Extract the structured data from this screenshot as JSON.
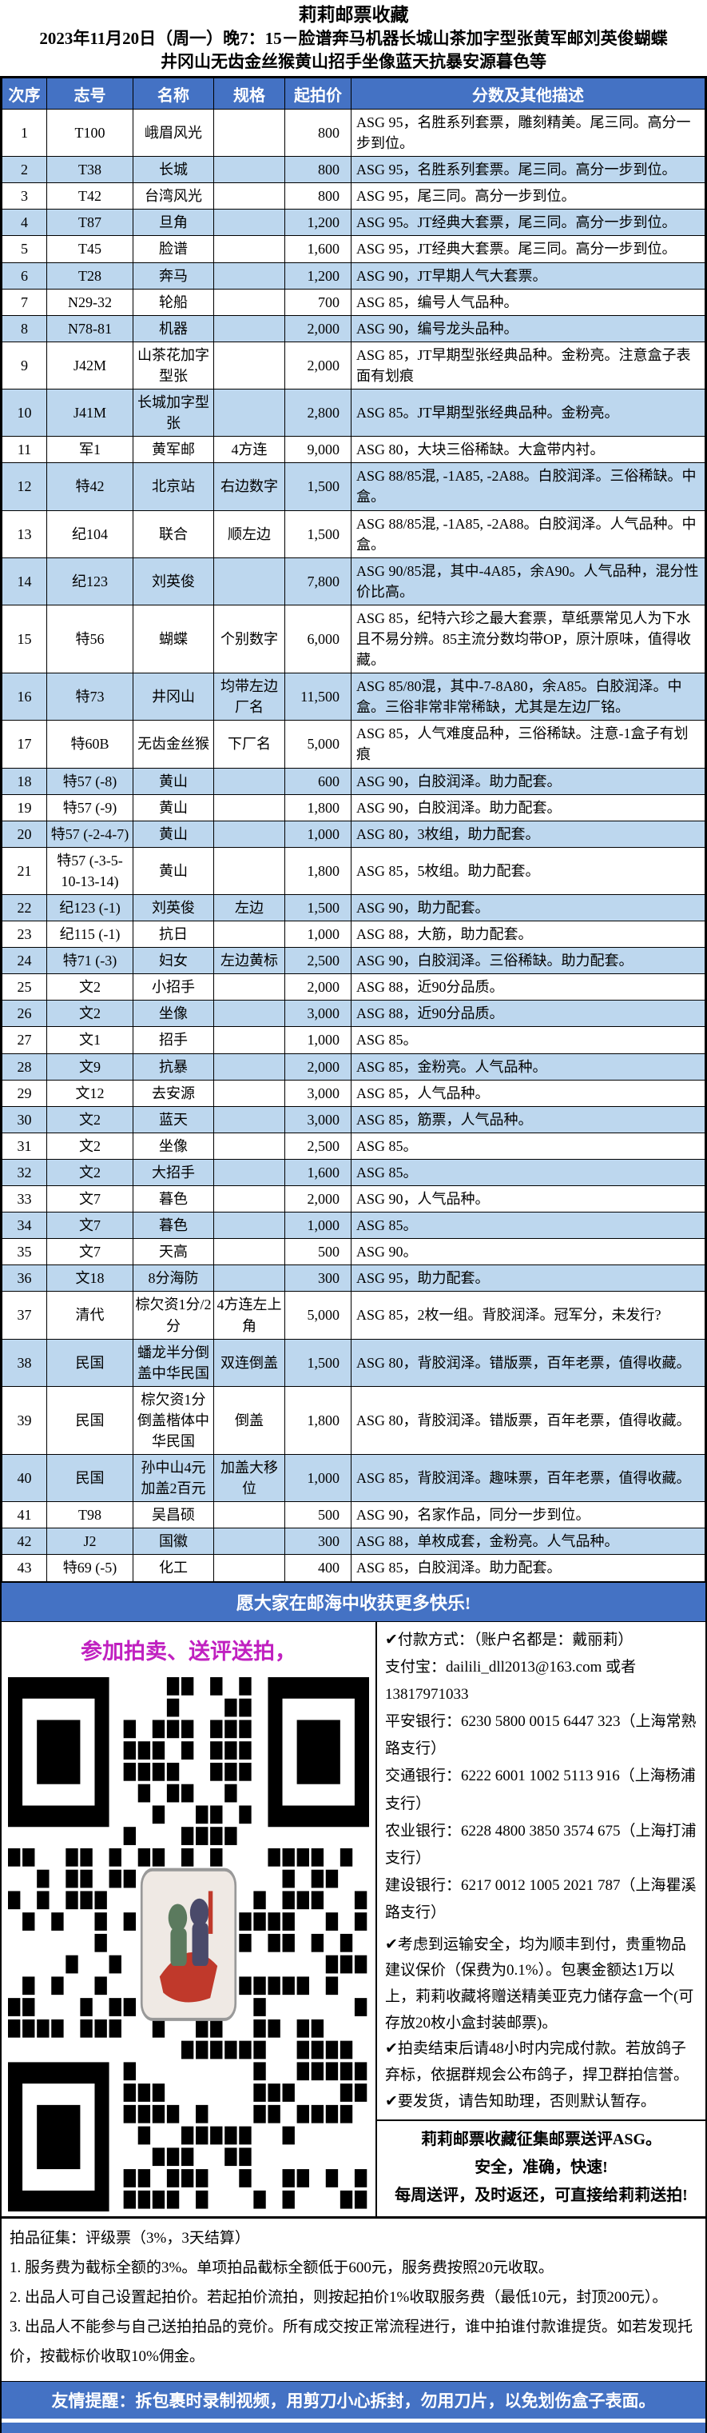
{
  "header": {
    "title": "莉莉邮票收藏",
    "subtitle_line1": "2023年11月20日（周一）晚7：15－脸谱奔马机器长城山茶加字型张黄军邮刘英俊蝴蝶",
    "subtitle_line2": "井冈山无齿金丝猴黄山招手坐像蓝天抗暴安源暮色等"
  },
  "colors": {
    "header_blue": "#4472C4",
    "row_alt_blue": "#BDD7EE",
    "slogan_magenta": "#C020C0"
  },
  "table": {
    "headers": [
      "次序",
      "志号",
      "名称",
      "规格",
      "起拍价",
      "分数及其他描述"
    ],
    "rows": [
      [
        "1",
        "T100",
        "峨眉风光",
        "",
        "800",
        "ASG 95，名胜系列套票，雕刻精美。尾三同。高分一步到位。"
      ],
      [
        "2",
        "T38",
        "长城",
        "",
        "800",
        "ASG 95，名胜系列套票。尾三同。高分一步到位。"
      ],
      [
        "3",
        "T42",
        "台湾风光",
        "",
        "800",
        "ASG 95，尾三同。高分一步到位。"
      ],
      [
        "4",
        "T87",
        "旦角",
        "",
        "1,200",
        "ASG 95。JT经典大套票，尾三同。高分一步到位。"
      ],
      [
        "5",
        "T45",
        "脸谱",
        "",
        "1,600",
        "ASG 95，JT经典大套票。尾三同。高分一步到位。"
      ],
      [
        "6",
        "T28",
        "奔马",
        "",
        "1,200",
        "ASG 90，JT早期人气大套票。"
      ],
      [
        "7",
        "N29-32",
        "轮船",
        "",
        "700",
        "ASG 85，编号人气品种。"
      ],
      [
        "8",
        "N78-81",
        "机器",
        "",
        "2,000",
        "ASG 90，编号龙头品种。"
      ],
      [
        "9",
        "J42M",
        "山茶花加字型张",
        "",
        "2,000",
        "ASG 85，JT早期型张经典品种。金粉亮。注意盒子表面有划痕"
      ],
      [
        "10",
        "J41M",
        "长城加字型张",
        "",
        "2,800",
        "ASG 85。JT早期型张经典品种。金粉亮。"
      ],
      [
        "11",
        "军1",
        "黄军邮",
        "4方连",
        "9,000",
        "ASG 80，大块三俗稀缺。大盒带内衬。"
      ],
      [
        "12",
        "特42",
        "北京站",
        "右边数字",
        "1,500",
        "ASG 88/85混, -1A85, -2A88。白胶润泽。三俗稀缺。中盒。"
      ],
      [
        "13",
        "纪104",
        "联合",
        "顺左边",
        "1,500",
        "ASG 88/85混, -1A85, -2A88。白胶润泽。人气品种。中盒。"
      ],
      [
        "14",
        "纪123",
        "刘英俊",
        "",
        "7,800",
        "ASG 90/85混，其中-4A85，余A90。人气品种，混分性价比高。"
      ],
      [
        "15",
        "特56",
        "蝴蝶",
        "个别数字",
        "6,000",
        "ASG 85，纪特六珍之最大套票，草纸票常见人为下水且不易分辨。85主流分数均带OP，原汁原味，值得收藏。"
      ],
      [
        "16",
        "特73",
        "井冈山",
        "均带左边厂名",
        "11,500",
        "ASG 85/80混，其中-7-8A80，余A85。白胶润泽。中盒。三俗非常非常稀缺，尤其是左边厂铭。"
      ],
      [
        "17",
        "特60B",
        "无齿金丝猴",
        "下厂名",
        "5,000",
        "ASG 85，人气难度品种，三俗稀缺。注意-1盒子有划痕"
      ],
      [
        "18",
        "特57 (-8)",
        "黄山",
        "",
        "600",
        "ASG 90，白胶润泽。助力配套。"
      ],
      [
        "19",
        "特57 (-9)",
        "黄山",
        "",
        "1,800",
        "ASG 90，白胶润泽。助力配套。"
      ],
      [
        "20",
        "特57 (-2-4-7)",
        "黄山",
        "",
        "1,000",
        "ASG 80，3枚组，助力配套。"
      ],
      [
        "21",
        "特57 (-3-5-10-13-14)",
        "黄山",
        "",
        "1,800",
        "ASG 85，5枚组。助力配套。"
      ],
      [
        "22",
        "纪123 (-1)",
        "刘英俊",
        "左边",
        "1,500",
        "ASG 90，助力配套。"
      ],
      [
        "23",
        "纪115 (-1)",
        "抗日",
        "",
        "1,000",
        "ASG 88，大筋，助力配套。"
      ],
      [
        "24",
        "特71 (-3)",
        "妇女",
        "左边黄标",
        "2,500",
        "ASG 90，白胶润泽。三俗稀缺。助力配套。"
      ],
      [
        "25",
        "文2",
        "小招手",
        "",
        "2,000",
        "ASG 88，近90分品质。"
      ],
      [
        "26",
        "文2",
        "坐像",
        "",
        "3,000",
        "ASG 88，近90分品质。"
      ],
      [
        "27",
        "文1",
        "招手",
        "",
        "1,000",
        "ASG 85。"
      ],
      [
        "28",
        "文9",
        "抗暴",
        "",
        "2,000",
        "ASG 85，金粉亮。人气品种。"
      ],
      [
        "29",
        "文12",
        "去安源",
        "",
        "3,000",
        "ASG 85，人气品种。"
      ],
      [
        "30",
        "文2",
        "蓝天",
        "",
        "3,000",
        "ASG 85，筋票，人气品种。"
      ],
      [
        "31",
        "文2",
        "坐像",
        "",
        "2,500",
        "ASG 85。"
      ],
      [
        "32",
        "文2",
        "大招手",
        "",
        "1,600",
        "ASG 85。"
      ],
      [
        "33",
        "文7",
        "暮色",
        "",
        "2,000",
        "ASG 90，人气品种。"
      ],
      [
        "34",
        "文7",
        "暮色",
        "",
        "1,000",
        "ASG 85。"
      ],
      [
        "35",
        "文7",
        "天高",
        "",
        "500",
        "ASG 90。"
      ],
      [
        "36",
        "文18",
        "8分海防",
        "",
        "300",
        "ASG 95，助力配套。"
      ],
      [
        "37",
        "清代",
        "棕欠资1分/2分",
        "4方连左上角",
        "5,000",
        "ASG 85，2枚一组。背胶润泽。冠军分，未发行?"
      ],
      [
        "38",
        "民国",
        "蟠龙半分倒盖中华民国",
        "双连倒盖",
        "1,500",
        "ASG 80，背胶润泽。错版票，百年老票，值得收藏。"
      ],
      [
        "39",
        "民国",
        "棕欠资1分倒盖楷体中华民国",
        "倒盖",
        "1,800",
        "ASG 80，背胶润泽。错版票，百年老票，值得收藏。"
      ],
      [
        "40",
        "民国",
        "孙中山4元加盖2百元",
        "加盖大移位",
        "1,000",
        "ASG 85，背胶润泽。趣味票，百年老票，值得收藏。"
      ],
      [
        "41",
        "T98",
        "吴昌硕",
        "",
        "500",
        "ASG 90，名家作品，同分一步到位。"
      ],
      [
        "42",
        "J2",
        "国徽",
        "",
        "300",
        "ASG 88，单枚成套，金粉亮。人气品种。"
      ],
      [
        "43",
        "特69 (-5)",
        "化工",
        "",
        "400",
        "ASG 85，白胶润泽。助力配套。"
      ]
    ]
  },
  "banner_text": "愿大家在邮海中收获更多快乐!",
  "footer": {
    "slogan": "参加拍卖、送评送拍，",
    "payment_lines": [
      "✔付款方式：（账户名都是：戴丽莉）",
      "支付宝：dailili_dll2013@163.com 或者 13817971033",
      "平安银行：6230 5800 0015 6447 323（上海常熟路支行）",
      "交通银行：6222 6001 1002 5113 916（上海杨浦支行）",
      "农业银行：6228 4800 3850 3574 675（上海打浦支行）",
      "建设银行：6217 0012 1005 2021 787（上海瞿溪路支行）"
    ],
    "note_lines": [
      "✔考虑到运输安全，均为顺丰到付，贵重物品建议保价（保费为0.1%）。包裹金额达1万以上，莉莉收藏将赠送精美亚克力储存盒一个(可存放20枚小盒封装邮票)。",
      "✔拍卖结束后请48小时内完成付款。若放鸽子弃标，依据群规会公布鸽子，捍卫群拍信誉。",
      "✔要发货，请告知助理，否则默认暂存。"
    ],
    "asg_lines": [
      "莉莉邮票收藏征集邮票送评ASG。",
      "安全，准确，快速!",
      "每周送评，及时返还，可直接给莉莉送拍!"
    ],
    "solicitation_lines": [
      "拍品征集：评级票（3%，3天结算）",
      "1. 服务费为截标全额的3%。单项拍品截标全额低于600元，服务费按照20元收取。",
      "2. 出品人可自己设置起拍价。若起拍价流拍，则按起拍价1%收取服务费（最低10元，封顶200元）。",
      "3. 出品人不能参与自己送拍拍品的竞价。所有成交按正常流程进行，谁中拍谁付款谁提货。如若发现托价，按截标价收取10%佣金。"
    ],
    "reminder": "友情提醒：拆包裹时录制视频，用剪刀小心拆封，勿用刀片，以免划伤盒子表面。"
  }
}
